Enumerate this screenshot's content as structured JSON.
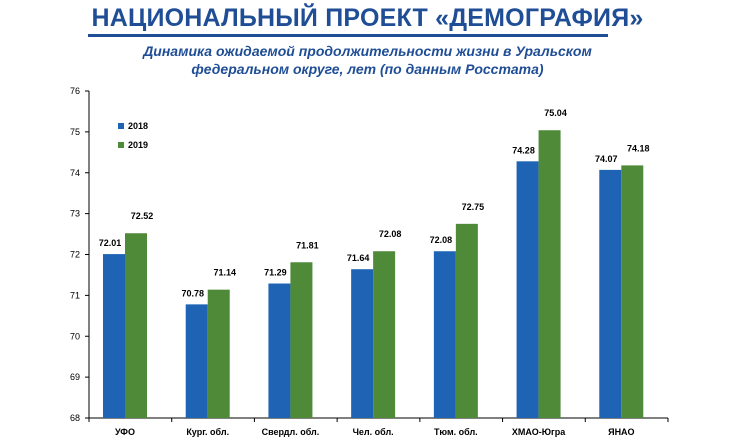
{
  "header": {
    "title": "НАЦИОНАЛЬНЫЙ ПРОЕКТ «ДЕМОГРАФИЯ»",
    "subtitle_line1": "Динамика ожидаемой продолжительности жизни в Уральском",
    "subtitle_line2": "федеральном округе, лет (по данным Росстата)"
  },
  "colors": {
    "title": "#1f4e96",
    "series_2018": "#1f64b4",
    "series_2019": "#4e8a38",
    "axis": "#000000"
  },
  "chart_data": {
    "type": "bar",
    "title": "Динамика ожидаемой продолжительности жизни в Уральском федеральном округе, лет (по данным Росстата)",
    "xlabel": "",
    "ylabel": "",
    "ylim": [
      68,
      76
    ],
    "yticks": [
      68,
      69,
      70,
      71,
      72,
      73,
      74,
      75,
      76
    ],
    "grid": false,
    "legend_position": "top-left",
    "categories": [
      "УФО",
      "Кург. обл.",
      "Свердл. обл.",
      "Чел. обл.",
      "Тюм. обл.",
      "ХМАО-Югра",
      "ЯНАО"
    ],
    "series": [
      {
        "name": "2018",
        "values": [
          72.01,
          70.78,
          71.29,
          71.64,
          72.08,
          74.28,
          74.07
        ]
      },
      {
        "name": "2019",
        "values": [
          72.52,
          71.14,
          71.81,
          72.08,
          72.75,
          75.04,
          74.18
        ]
      }
    ]
  }
}
